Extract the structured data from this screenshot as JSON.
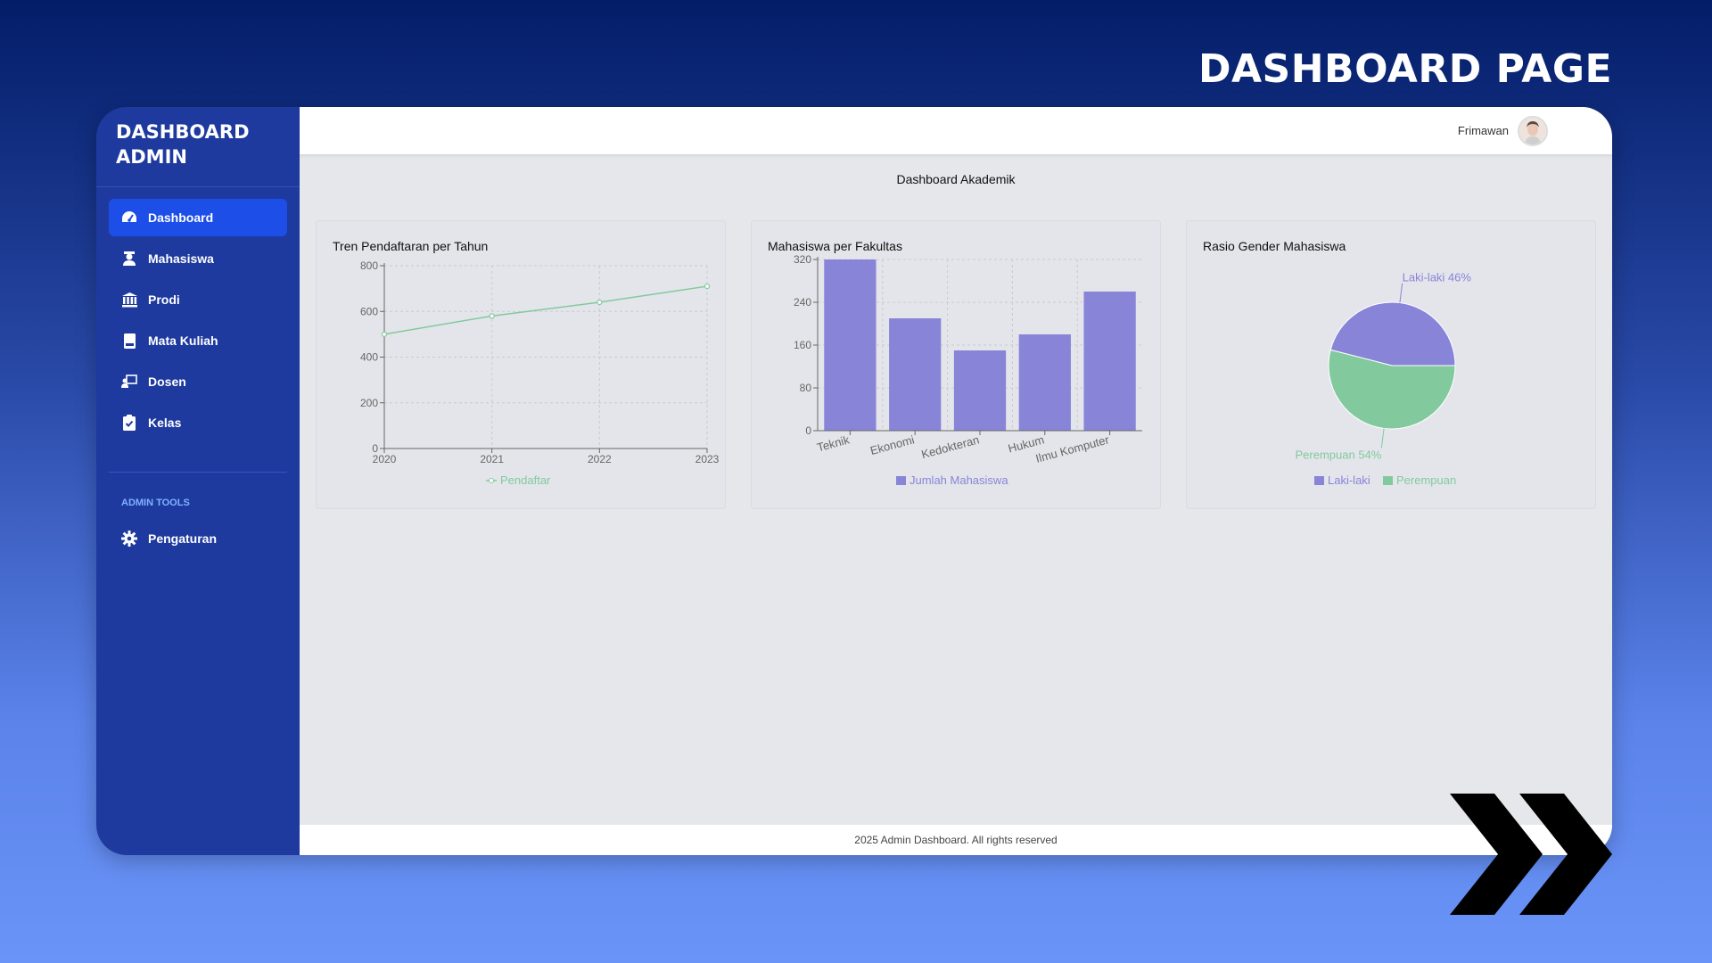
{
  "banner": {
    "title": "DASHBOARD PAGE"
  },
  "sidebar": {
    "brand_line1": "DASHBOARD",
    "brand_line2": "ADMIN",
    "items": [
      {
        "label": "Dashboard",
        "icon": "gauge-icon",
        "active": true
      },
      {
        "label": "Mahasiswa",
        "icon": "student-icon"
      },
      {
        "label": "Prodi",
        "icon": "building-columns-icon"
      },
      {
        "label": "Mata Kuliah",
        "icon": "book-icon"
      },
      {
        "label": "Dosen",
        "icon": "chalkboard-teacher-icon"
      },
      {
        "label": "Kelas",
        "icon": "clipboard-check-icon"
      }
    ],
    "tools_label": "ADMIN TOOLS",
    "tools": [
      {
        "label": "Pengaturan",
        "icon": "gear-icon"
      }
    ]
  },
  "header": {
    "username": "Frimawan",
    "avatar_icon": "avatar"
  },
  "main": {
    "title": "Dashboard Akademik"
  },
  "footer": {
    "text": "2025 Admin Dashboard. All rights reserved"
  },
  "colors": {
    "line": "#82ca9d",
    "bar": "#8884d8",
    "pie_male": "#8884d8",
    "pie_female": "#82ca9d"
  },
  "chart_data": [
    {
      "type": "line",
      "title": "Tren Pendaftaran per Tahun",
      "x": [
        "2020",
        "2021",
        "2022",
        "2023"
      ],
      "series": [
        {
          "name": "Pendaftar",
          "values": [
            500,
            580,
            640,
            710
          ]
        }
      ],
      "ylim": [
        0,
        800
      ],
      "yticks": [
        0,
        200,
        400,
        600,
        800
      ],
      "grid": true,
      "legend": "bottom"
    },
    {
      "type": "bar",
      "title": "Mahasiswa per Fakultas",
      "categories": [
        "Teknik",
        "Ekonomi",
        "Kedokteran",
        "Hukum",
        "Ilmu Komputer"
      ],
      "series": [
        {
          "name": "Jumlah Mahasiswa",
          "values": [
            320,
            210,
            150,
            180,
            260
          ]
        }
      ],
      "ylim": [
        0,
        320
      ],
      "yticks": [
        0,
        80,
        160,
        240,
        320
      ],
      "grid": true,
      "legend": "bottom"
    },
    {
      "type": "pie",
      "title": "Rasio Gender Mahasiswa",
      "slices": [
        {
          "name": "Laki-laki",
          "value": 46,
          "label": "Laki-laki 46%"
        },
        {
          "name": "Perempuan",
          "value": 54,
          "label": "Perempuan 54%"
        }
      ],
      "legend": "bottom"
    }
  ]
}
